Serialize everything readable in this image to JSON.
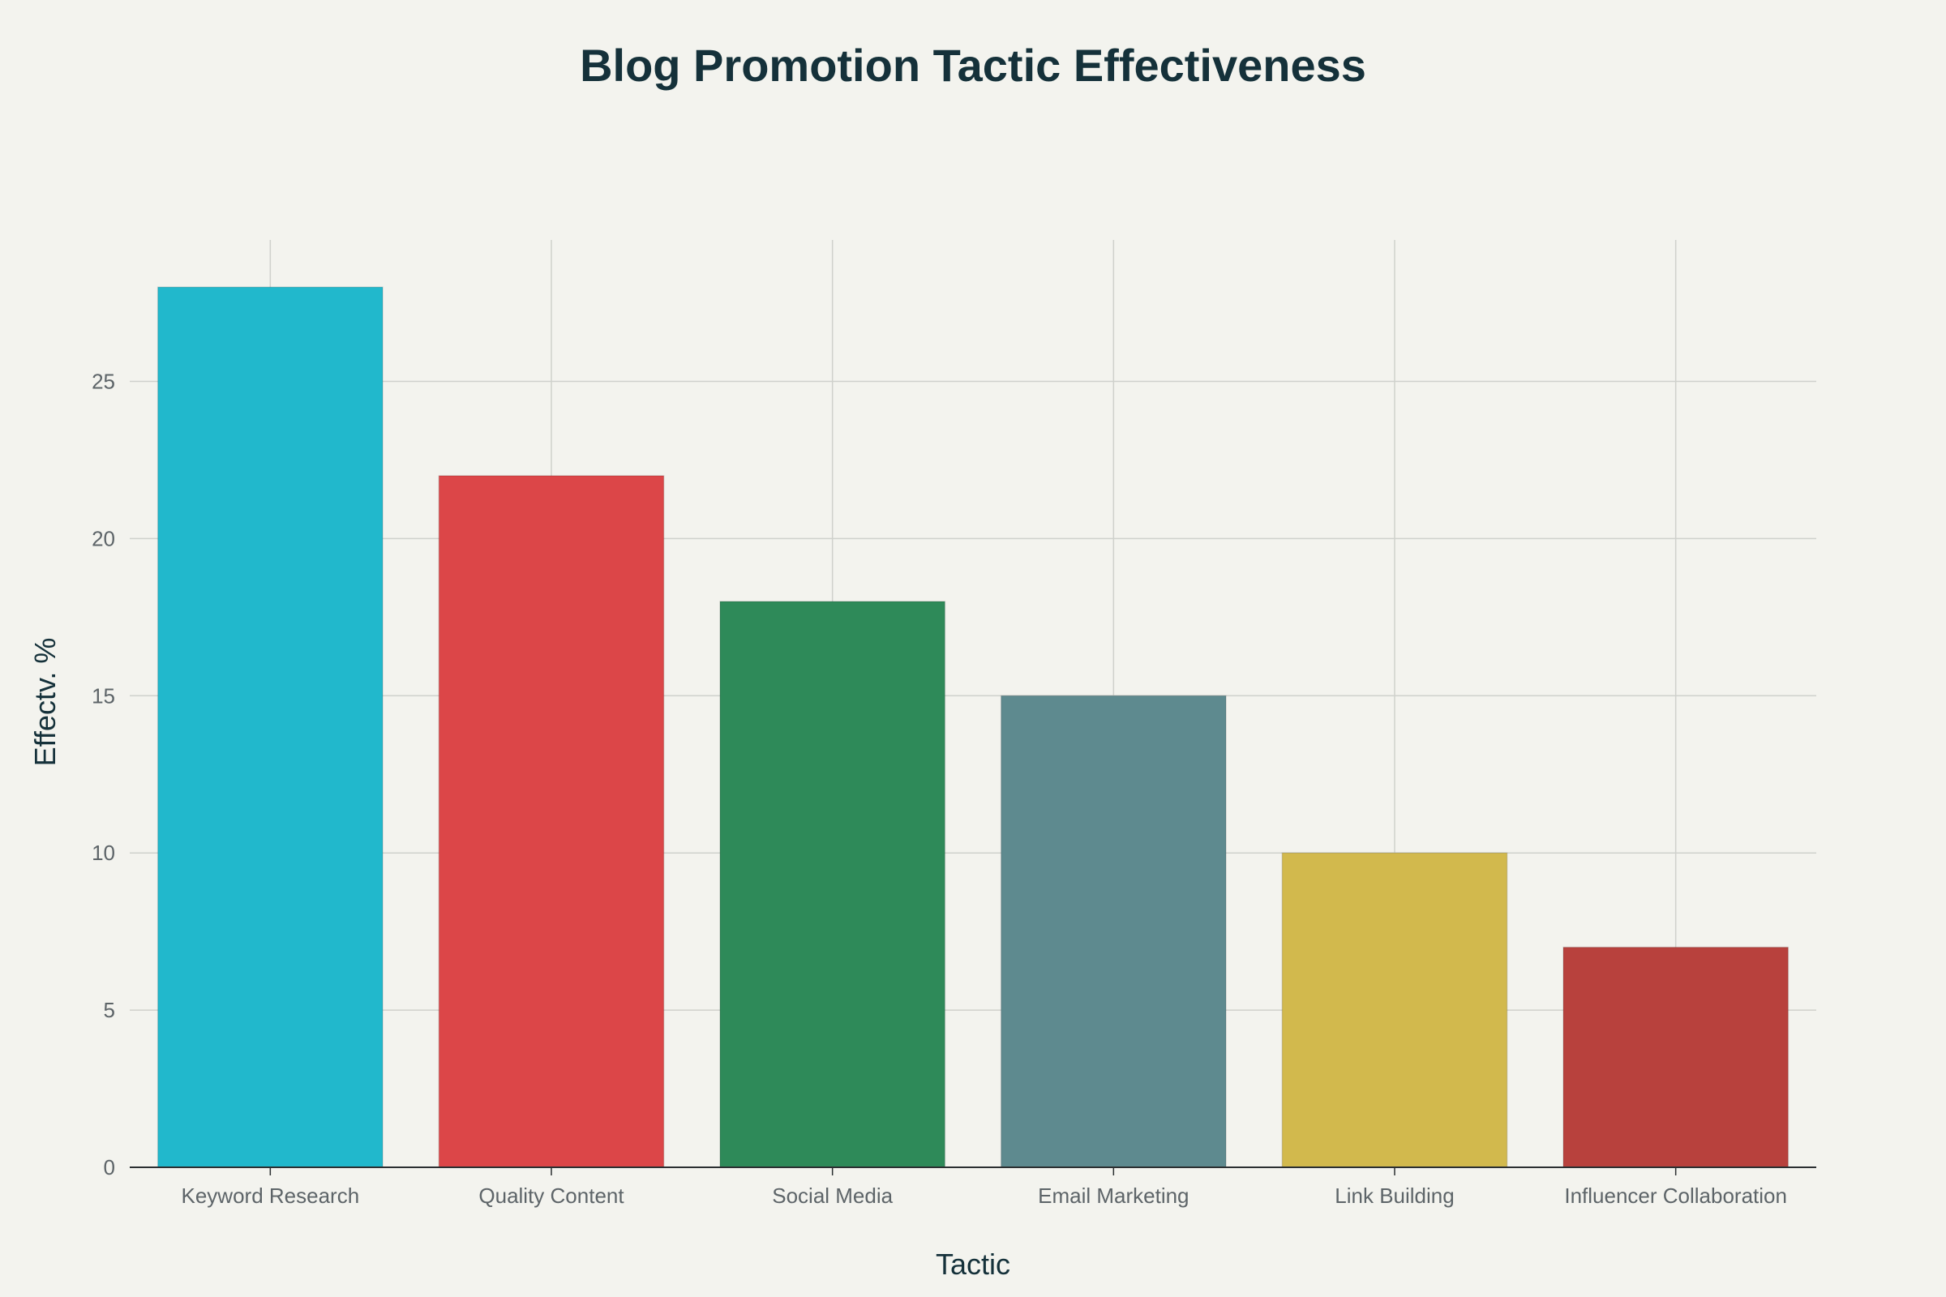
{
  "chart_data": {
    "type": "bar",
    "title": "Blog Promotion Tactic Effectiveness",
    "xlabel": "Tactic",
    "ylabel": "Effectv. %",
    "categories": [
      "Keyword Research",
      "Quality Content",
      "Social Media",
      "Email Marketing",
      "Link Building",
      "Influencer Collaboration"
    ],
    "values": [
      28,
      22,
      18,
      15,
      10,
      7
    ],
    "colors": [
      "#21b8cc",
      "#dc4648",
      "#2e8a59",
      "#5e8a8f",
      "#d2b94d",
      "#b8413d"
    ],
    "ylim": [
      0,
      29.5
    ],
    "yticks": [
      0,
      5,
      10,
      15,
      20,
      25
    ],
    "grid": true,
    "legend": "none"
  }
}
